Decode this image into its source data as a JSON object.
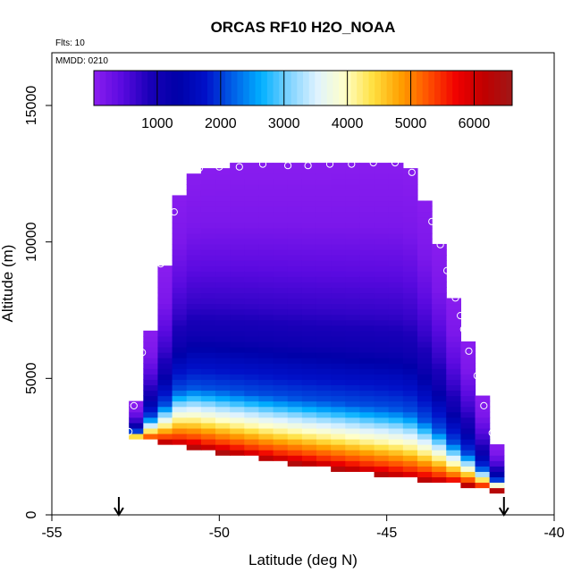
{
  "chart_data": {
    "type": "heatmap",
    "title": "ORCAS RF10 H2O_NOAA",
    "flights_label": "Flts: 10",
    "date_label": "MMDD: 0210",
    "xlabel": "Latitude (deg N)",
    "ylabel": "Altitude (m)",
    "xlim": [
      -55,
      -40
    ],
    "ylim": [
      0,
      16500
    ],
    "x_ticks": [
      -55,
      -50,
      -45,
      -40
    ],
    "x_tick_labels": [
      "-55",
      "-50",
      "-45",
      "-40"
    ],
    "y_ticks": [
      0,
      5000,
      10000,
      15000
    ],
    "y_tick_labels": [
      "0",
      "5000",
      "10000",
      "15000"
    ],
    "colorbar": {
      "range": [
        0,
        6600
      ],
      "ticks": [
        1000,
        2000,
        3000,
        4000,
        5000,
        6000
      ],
      "tick_labels": [
        "1000",
        "2000",
        "3000",
        "4000",
        "5000",
        "6000"
      ],
      "colors": [
        "#8c1ef0",
        "#5a0ae0",
        "#1a00b8",
        "#0000a8",
        "#0010c8",
        "#0060e8",
        "#00b0ff",
        "#7dd2ff",
        "#dff3ff",
        "#ffffc8",
        "#ffe040",
        "#ffa000",
        "#ff5000",
        "#f00000",
        "#c00000",
        "#a01818"
      ]
    },
    "field": {
      "x_range": [
        -52.7,
        -41.5
      ],
      "y_range": [
        800,
        13100
      ],
      "columns": 26,
      "rows": 62,
      "layers": [
        {
          "lower": 0.0,
          "value": 6400
        },
        {
          "lower": 0.03,
          "value": 5500
        },
        {
          "lower": 0.07,
          "value": 4800
        },
        {
          "lower": 0.1,
          "value": 4200
        },
        {
          "lower": 0.13,
          "value": 3700
        },
        {
          "lower": 0.16,
          "value": 3200
        },
        {
          "lower": 0.19,
          "value": 2600
        },
        {
          "lower": 0.22,
          "value": 2100
        },
        {
          "lower": 0.32,
          "value": 1600
        },
        {
          "lower": 0.4,
          "value": 1100
        },
        {
          "lower": 0.52,
          "value": 700
        },
        {
          "lower": 0.66,
          "value": 400
        },
        {
          "lower": 0.8,
          "value": 150
        },
        {
          "lower": 1.0,
          "value": 30
        }
      ]
    },
    "top_outline": [
      {
        "x": -52.7,
        "y": 3000
      },
      {
        "x": -52.5,
        "y": 4000
      },
      {
        "x": -52.3,
        "y": 5200
      },
      {
        "x": -52.2,
        "y": 6000
      },
      {
        "x": -52.0,
        "y": 7000
      },
      {
        "x": -51.8,
        "y": 8100
      },
      {
        "x": -51.6,
        "y": 9200
      },
      {
        "x": -51.4,
        "y": 10400
      },
      {
        "x": -51.3,
        "y": 11100
      },
      {
        "x": -51.1,
        "y": 12400
      },
      {
        "x": -50.6,
        "y": 12700
      },
      {
        "x": -50.0,
        "y": 12750
      },
      {
        "x": -49.5,
        "y": 12800
      },
      {
        "x": -48.9,
        "y": 12850
      },
      {
        "x": -48.3,
        "y": 12850
      },
      {
        "x": -47.6,
        "y": 12850
      },
      {
        "x": -47.0,
        "y": 12850
      },
      {
        "x": -46.3,
        "y": 12900
      },
      {
        "x": -45.7,
        "y": 12900
      },
      {
        "x": -45.1,
        "y": 12900
      },
      {
        "x": -44.6,
        "y": 12900
      },
      {
        "x": -44.2,
        "y": 12550
      },
      {
        "x": -43.9,
        "y": 11650
      },
      {
        "x": -43.7,
        "y": 10750
      },
      {
        "x": -43.4,
        "y": 9900
      },
      {
        "x": -43.2,
        "y": 9000
      },
      {
        "x": -43.0,
        "y": 8000
      },
      {
        "x": -42.8,
        "y": 7300
      },
      {
        "x": -42.7,
        "y": 6800
      },
      {
        "x": -42.5,
        "y": 6000
      },
      {
        "x": -42.3,
        "y": 5150
      },
      {
        "x": -42.1,
        "y": 4050
      },
      {
        "x": -41.8,
        "y": 3000
      },
      {
        "x": -41.6,
        "y": 2000
      },
      {
        "x": -41.5,
        "y": 1300
      }
    ],
    "bottom_outline": [
      {
        "x": -52.7,
        "y": 2800
      },
      {
        "x": -51.5,
        "y": 2600
      },
      {
        "x": -50.0,
        "y": 2300
      },
      {
        "x": -48.5,
        "y": 2000
      },
      {
        "x": -47.0,
        "y": 1750
      },
      {
        "x": -45.5,
        "y": 1500
      },
      {
        "x": -44.0,
        "y": 1250
      },
      {
        "x": -42.5,
        "y": 1050
      },
      {
        "x": -41.5,
        "y": 850
      }
    ],
    "sample_points": [
      {
        "x": -52.7,
        "y": 3050
      },
      {
        "x": -52.55,
        "y": 4000
      },
      {
        "x": -52.45,
        "y": 5150
      },
      {
        "x": -52.3,
        "y": 5950
      },
      {
        "x": -52.2,
        "y": 7000
      },
      {
        "x": -51.95,
        "y": 8050
      },
      {
        "x": -51.75,
        "y": 9200
      },
      {
        "x": -51.55,
        "y": 10350
      },
      {
        "x": -51.35,
        "y": 11100
      },
      {
        "x": -51.1,
        "y": 12350
      },
      {
        "x": -50.6,
        "y": 12700
      },
      {
        "x": -50.0,
        "y": 12750
      },
      {
        "x": -49.4,
        "y": 12750
      },
      {
        "x": -48.7,
        "y": 12850
      },
      {
        "x": -47.95,
        "y": 12800
      },
      {
        "x": -47.35,
        "y": 12800
      },
      {
        "x": -46.7,
        "y": 12850
      },
      {
        "x": -46.05,
        "y": 12850
      },
      {
        "x": -45.4,
        "y": 12900
      },
      {
        "x": -44.75,
        "y": 12900
      },
      {
        "x": -44.25,
        "y": 12550
      },
      {
        "x": -43.85,
        "y": 11650
      },
      {
        "x": -43.65,
        "y": 10750
      },
      {
        "x": -43.4,
        "y": 9900
      },
      {
        "x": -43.2,
        "y": 8950
      },
      {
        "x": -42.95,
        "y": 7950
      },
      {
        "x": -42.8,
        "y": 7300
      },
      {
        "x": -42.7,
        "y": 6800
      },
      {
        "x": -42.55,
        "y": 6000
      },
      {
        "x": -42.3,
        "y": 5100
      },
      {
        "x": -42.1,
        "y": 4000
      },
      {
        "x": -41.85,
        "y": 3000
      }
    ],
    "arrows": [
      {
        "x": -53.0
      },
      {
        "x": -41.5
      }
    ]
  }
}
